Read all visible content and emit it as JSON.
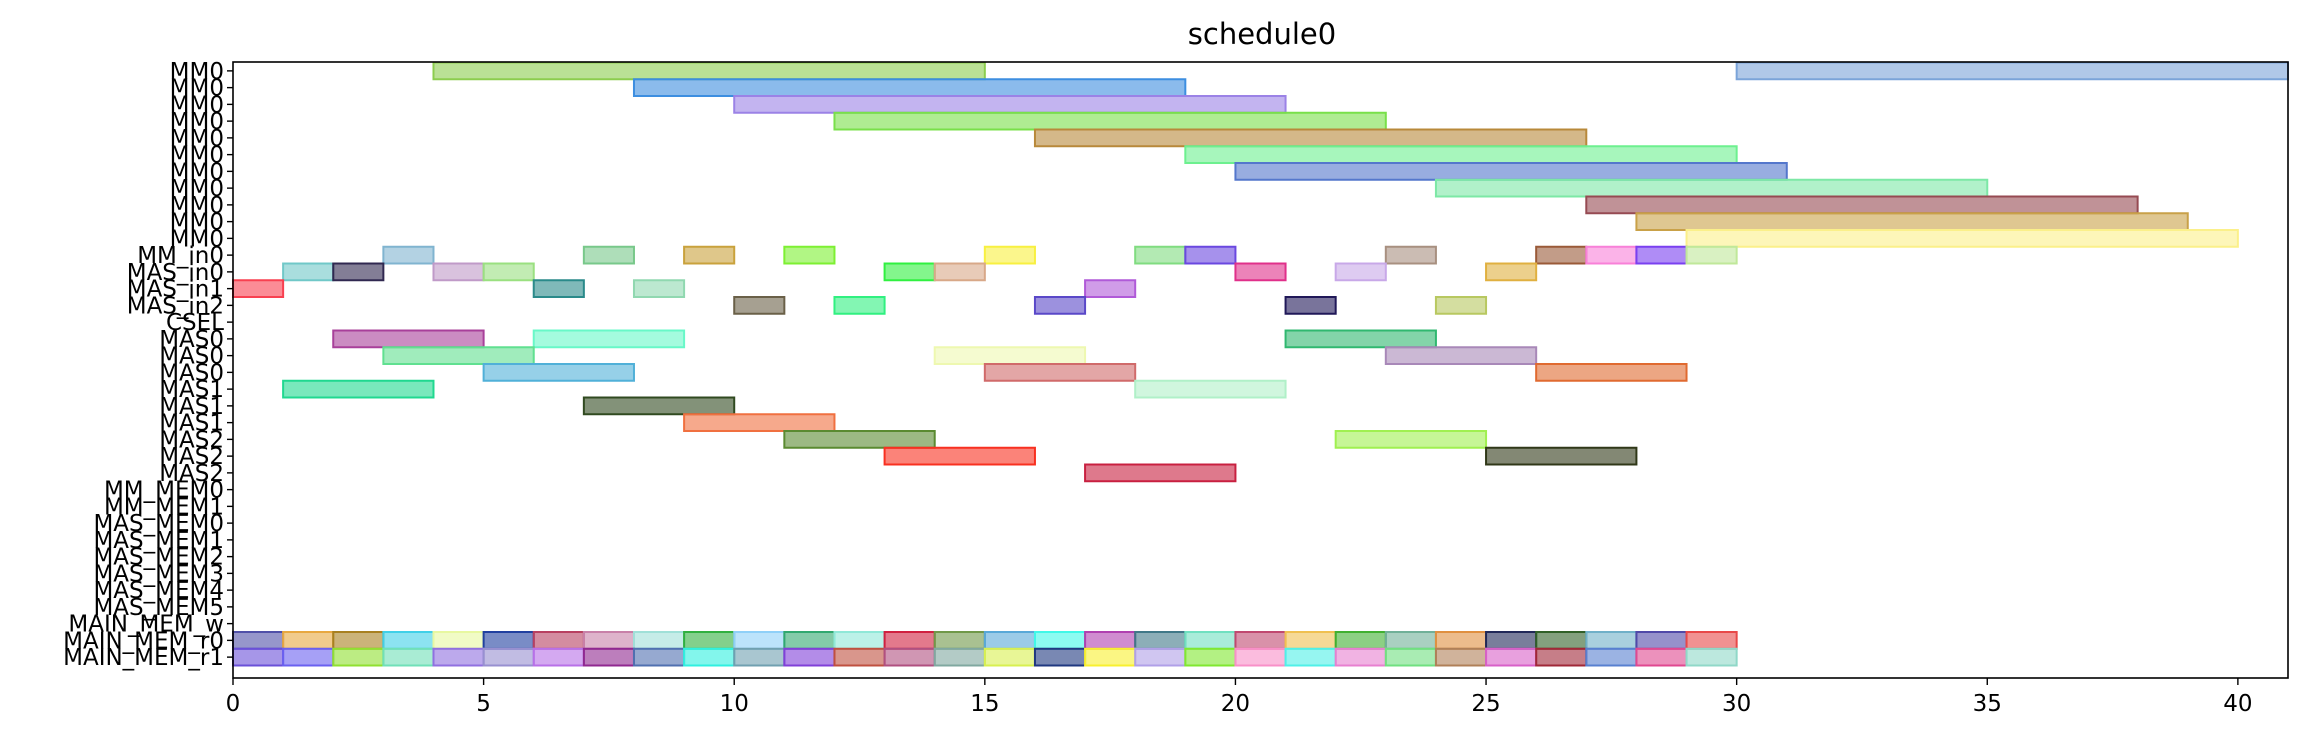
{
  "chart_data": {
    "type": "gantt",
    "title": "schedule0",
    "xlim": [
      0,
      41
    ],
    "xticks": [
      0,
      5,
      10,
      15,
      20,
      25,
      30,
      35,
      40
    ],
    "grid": false,
    "rows": [
      "MM0",
      "MM0",
      "MM0",
      "MM0",
      "MM0",
      "MM0",
      "MM0",
      "MM0",
      "MM0",
      "MM0",
      "MM0",
      "MM_in0",
      "MAS_in0",
      "MAS_in1",
      "MAS_in2",
      "CSEL",
      "MAS0",
      "MAS0",
      "MAS0",
      "MAS1",
      "MAS1",
      "MAS1",
      "MAS2",
      "MAS2",
      "MAS2",
      "MM_MEM0",
      "MM_MEM1",
      "MAS_MEM0",
      "MAS_MEM1",
      "MAS_MEM2",
      "MAS_MEM3",
      "MAS_MEM4",
      "MAS_MEM5",
      "MAIN_MEM_w",
      "MAIN_MEM_r0",
      "MAIN_MEM_r1"
    ],
    "bars": [
      {
        "row": 0,
        "start": 4,
        "end": 15,
        "color": "#8ccd4e"
      },
      {
        "row": 0,
        "start": 30,
        "end": 41,
        "color": "#7ba4d9"
      },
      {
        "row": 1,
        "start": 8,
        "end": 19,
        "color": "#3d8ee0"
      },
      {
        "row": 2,
        "start": 10,
        "end": 21,
        "color": "#9b82e6"
      },
      {
        "row": 3,
        "start": 12,
        "end": 23,
        "color": "#79e04a"
      },
      {
        "row": 4,
        "start": 16,
        "end": 27,
        "color": "#b8893a"
      },
      {
        "row": 5,
        "start": 19,
        "end": 30,
        "color": "#6df08f"
      },
      {
        "row": 6,
        "start": 20,
        "end": 31,
        "color": "#5477cc"
      },
      {
        "row": 7,
        "start": 24,
        "end": 35,
        "color": "#7de8a6"
      },
      {
        "row": 8,
        "start": 27,
        "end": 38,
        "color": "#964a52"
      },
      {
        "row": 9,
        "start": 28,
        "end": 39,
        "color": "#c9a148"
      },
      {
        "row": 10,
        "start": 29,
        "end": 40,
        "color": "#fbf08a"
      },
      {
        "row": 11,
        "start": 3,
        "end": 4,
        "color": "#80b4d0"
      },
      {
        "row": 11,
        "start": 7,
        "end": 8,
        "color": "#78c88a"
      },
      {
        "row": 11,
        "start": 9,
        "end": 10,
        "color": "#c9a23c"
      },
      {
        "row": 11,
        "start": 11,
        "end": 12,
        "color": "#7df032"
      },
      {
        "row": 11,
        "start": 15,
        "end": 16,
        "color": "#f8f040"
      },
      {
        "row": 11,
        "start": 18,
        "end": 19,
        "color": "#80dc80"
      },
      {
        "row": 11,
        "start": 19,
        "end": 20,
        "color": "#6a48e0"
      },
      {
        "row": 11,
        "start": 23,
        "end": 24,
        "color": "#a89080"
      },
      {
        "row": 11,
        "start": 26,
        "end": 27,
        "color": "#9a5a38"
      },
      {
        "row": 11,
        "start": 27,
        "end": 28,
        "color": "#f880d8"
      },
      {
        "row": 11,
        "start": 28,
        "end": 29,
        "color": "#7a40f0"
      },
      {
        "row": 11,
        "start": 29,
        "end": 30,
        "color": "#c0e89a"
      },
      {
        "row": 12,
        "start": 1,
        "end": 2,
        "color": "#70c8c8"
      },
      {
        "row": 12,
        "start": 2,
        "end": 3,
        "color": "#302850"
      },
      {
        "row": 12,
        "start": 4,
        "end": 5,
        "color": "#c09ac8"
      },
      {
        "row": 12,
        "start": 5,
        "end": 6,
        "color": "#9ae080"
      },
      {
        "row": 12,
        "start": 13,
        "end": 14,
        "color": "#30f040"
      },
      {
        "row": 12,
        "start": 14,
        "end": 15,
        "color": "#d8a888"
      },
      {
        "row": 12,
        "start": 20,
        "end": 21,
        "color": "#e0308a"
      },
      {
        "row": 12,
        "start": 22,
        "end": 23,
        "color": "#c8a8e8"
      },
      {
        "row": 12,
        "start": 25,
        "end": 26,
        "color": "#e0b040"
      },
      {
        "row": 13,
        "start": 0,
        "end": 1,
        "color": "#f84050"
      },
      {
        "row": 13,
        "start": 6,
        "end": 7,
        "color": "#2a8a8a"
      },
      {
        "row": 13,
        "start": 8,
        "end": 9,
        "color": "#90d8b0"
      },
      {
        "row": 13,
        "start": 17,
        "end": 18,
        "color": "#b05ad8"
      },
      {
        "row": 14,
        "start": 10,
        "end": 11,
        "color": "#6a6048"
      },
      {
        "row": 14,
        "start": 12,
        "end": 13,
        "color": "#30f080"
      },
      {
        "row": 14,
        "start": 16,
        "end": 17,
        "color": "#5a48c8"
      },
      {
        "row": 14,
        "start": 21,
        "end": 22,
        "color": "#201858"
      },
      {
        "row": 14,
        "start": 24,
        "end": 25,
        "color": "#b8c860"
      },
      {
        "row": 16,
        "start": 2,
        "end": 5,
        "color": "#a8409a"
      },
      {
        "row": 16,
        "start": 6,
        "end": 9,
        "color": "#68f8c8"
      },
      {
        "row": 16,
        "start": 21,
        "end": 24,
        "color": "#30b870"
      },
      {
        "row": 17,
        "start": 3,
        "end": 6,
        "color": "#60e090"
      },
      {
        "row": 17,
        "start": 14,
        "end": 17,
        "color": "#eef8b0"
      },
      {
        "row": 17,
        "start": 23,
        "end": 26,
        "color": "#a888b8"
      },
      {
        "row": 18,
        "start": 5,
        "end": 8,
        "color": "#50b0d8"
      },
      {
        "row": 18,
        "start": 15,
        "end": 18,
        "color": "#d06a6a"
      },
      {
        "row": 18,
        "start": 26,
        "end": 29,
        "color": "#e06a30"
      },
      {
        "row": 19,
        "start": 1,
        "end": 4,
        "color": "#20d890"
      },
      {
        "row": 19,
        "start": 18,
        "end": 21,
        "color": "#b0f0c8"
      },
      {
        "row": 20,
        "start": 7,
        "end": 10,
        "color": "#304a20"
      },
      {
        "row": 21,
        "start": 9,
        "end": 12,
        "color": "#f07040"
      },
      {
        "row": 22,
        "start": 11,
        "end": 14,
        "color": "#5a8a30"
      },
      {
        "row": 22,
        "start": 22,
        "end": 25,
        "color": "#a0f050"
      },
      {
        "row": 23,
        "start": 13,
        "end": 16,
        "color": "#f83020"
      },
      {
        "row": 23,
        "start": 25,
        "end": 28,
        "color": "#303818"
      },
      {
        "row": 24,
        "start": 17,
        "end": 20,
        "color": "#c82040"
      },
      {
        "row": 34,
        "start": 0,
        "end": 1,
        "color": "#5050a8"
      },
      {
        "row": 34,
        "start": 1,
        "end": 2,
        "color": "#e8a840"
      },
      {
        "row": 34,
        "start": 2,
        "end": 3,
        "color": "#a88020"
      },
      {
        "row": 34,
        "start": 3,
        "end": 4,
        "color": "#40d0e8"
      },
      {
        "row": 34,
        "start": 4,
        "end": 5,
        "color": "#e8f8a0"
      },
      {
        "row": 34,
        "start": 5,
        "end": 6,
        "color": "#2040a0"
      },
      {
        "row": 34,
        "start": 6,
        "end": 7,
        "color": "#b84060"
      },
      {
        "row": 34,
        "start": 7,
        "end": 8,
        "color": "#c880a8"
      },
      {
        "row": 34,
        "start": 8,
        "end": 9,
        "color": "#a0e0d8"
      },
      {
        "row": 34,
        "start": 9,
        "end": 10,
        "color": "#30b040"
      },
      {
        "row": 34,
        "start": 10,
        "end": 11,
        "color": "#90d0f8"
      },
      {
        "row": 34,
        "start": 11,
        "end": 12,
        "color": "#30a870"
      },
      {
        "row": 34,
        "start": 12,
        "end": 13,
        "color": "#90e8d8"
      },
      {
        "row": 34,
        "start": 13,
        "end": 14,
        "color": "#d02040"
      },
      {
        "row": 34,
        "start": 14,
        "end": 15,
        "color": "#709848"
      },
      {
        "row": 34,
        "start": 15,
        "end": 16,
        "color": "#58a8d8"
      },
      {
        "row": 34,
        "start": 16,
        "end": 17,
        "color": "#40f8e8"
      },
      {
        "row": 34,
        "start": 17,
        "end": 18,
        "color": "#b040b0"
      },
      {
        "row": 34,
        "start": 18,
        "end": 19,
        "color": "#407888"
      },
      {
        "row": 34,
        "start": 19,
        "end": 20,
        "color": "#70e0c0"
      },
      {
        "row": 34,
        "start": 20,
        "end": 21,
        "color": "#c04870"
      },
      {
        "row": 34,
        "start": 21,
        "end": 22,
        "color": "#f0c050"
      },
      {
        "row": 34,
        "start": 22,
        "end": 23,
        "color": "#40b030"
      },
      {
        "row": 34,
        "start": 23,
        "end": 24,
        "color": "#70b098"
      },
      {
        "row": 34,
        "start": 24,
        "end": 25,
        "color": "#e09040"
      },
      {
        "row": 34,
        "start": 25,
        "end": 26,
        "color": "#202858"
      },
      {
        "row": 34,
        "start": 26,
        "end": 27,
        "color": "#306028"
      },
      {
        "row": 34,
        "start": 27,
        "end": 28,
        "color": "#70b0c8"
      },
      {
        "row": 34,
        "start": 28,
        "end": 29,
        "color": "#5048a8"
      },
      {
        "row": 34,
        "start": 29,
        "end": 30,
        "color": "#e84848"
      },
      {
        "row": 35,
        "start": 0,
        "end": 1,
        "color": "#6a50d8"
      },
      {
        "row": 35,
        "start": 1,
        "end": 2,
        "color": "#6a60f0"
      },
      {
        "row": 35,
        "start": 2,
        "end": 3,
        "color": "#90e030"
      },
      {
        "row": 35,
        "start": 3,
        "end": 4,
        "color": "#70e0b8"
      },
      {
        "row": 35,
        "start": 4,
        "end": 5,
        "color": "#9070e0"
      },
      {
        "row": 35,
        "start": 5,
        "end": 6,
        "color": "#9890d0"
      },
      {
        "row": 35,
        "start": 6,
        "end": 7,
        "color": "#b870e8"
      },
      {
        "row": 35,
        "start": 7,
        "end": 8,
        "color": "#902890"
      },
      {
        "row": 35,
        "start": 8,
        "end": 9,
        "color": "#5070b0"
      },
      {
        "row": 35,
        "start": 9,
        "end": 10,
        "color": "#30f0e0"
      },
      {
        "row": 35,
        "start": 10,
        "end": 11,
        "color": "#70a0b0"
      },
      {
        "row": 35,
        "start": 11,
        "end": 12,
        "color": "#8040d8"
      },
      {
        "row": 35,
        "start": 12,
        "end": 13,
        "color": "#c05040"
      },
      {
        "row": 35,
        "start": 13,
        "end": 14,
        "color": "#b05080"
      },
      {
        "row": 35,
        "start": 14,
        "end": 15,
        "color": "#80a8a0"
      },
      {
        "row": 35,
        "start": 15,
        "end": 16,
        "color": "#d8f050"
      },
      {
        "row": 35,
        "start": 16,
        "end": 17,
        "color": "#203880"
      },
      {
        "row": 35,
        "start": 17,
        "end": 18,
        "color": "#f8f030"
      },
      {
        "row": 35,
        "start": 18,
        "end": 19,
        "color": "#b0a0e8"
      },
      {
        "row": 35,
        "start": 19,
        "end": 20,
        "color": "#80e830"
      },
      {
        "row": 35,
        "start": 20,
        "end": 21,
        "color": "#f890c8"
      },
      {
        "row": 35,
        "start": 21,
        "end": 22,
        "color": "#50f0e8"
      },
      {
        "row": 35,
        "start": 22,
        "end": 23,
        "color": "#e880d0"
      },
      {
        "row": 35,
        "start": 23,
        "end": 24,
        "color": "#70e080"
      },
      {
        "row": 35,
        "start": 24,
        "end": 25,
        "color": "#b08058"
      },
      {
        "row": 35,
        "start": 25,
        "end": 26,
        "color": "#d860c8"
      },
      {
        "row": 35,
        "start": 26,
        "end": 27,
        "color": "#a02838"
      },
      {
        "row": 35,
        "start": 27,
        "end": 28,
        "color": "#5880d0"
      },
      {
        "row": 35,
        "start": 28,
        "end": 29,
        "color": "#e04890"
      },
      {
        "row": 35,
        "start": 29,
        "end": 30,
        "color": "#90d8c8"
      }
    ]
  }
}
